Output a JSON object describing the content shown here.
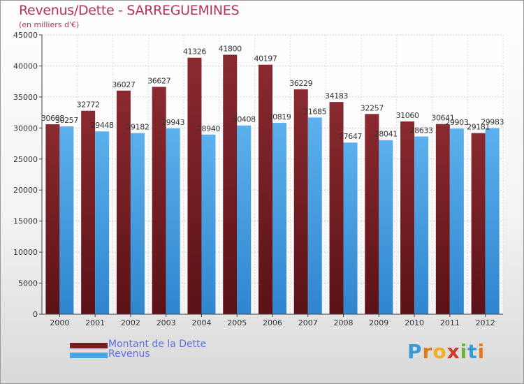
{
  "chart_data": {
    "type": "bar",
    "title": "Revenus/Dette - SARREGUEMINES",
    "subtitle": "(en milliers d'€)",
    "categories": [
      "2000",
      "2001",
      "2002",
      "2003",
      "2004",
      "2005",
      "2006",
      "2007",
      "2008",
      "2009",
      "2010",
      "2011",
      "2012"
    ],
    "series": [
      {
        "name": "Montant de la Dette",
        "color": "#7a1e24",
        "values": [
          30608,
          32772,
          36027,
          36627,
          41326,
          41800,
          40197,
          36229,
          34183,
          32257,
          31060,
          30641,
          29181
        ],
        "labels": [
          "30608",
          "32772",
          "36027",
          "36627",
          "41326",
          "41800",
          "40197",
          "36229",
          "34183",
          "32257",
          "31060",
          "30641",
          "29181"
        ]
      },
      {
        "name": "Revenus",
        "color": "#4aa3e6",
        "values": [
          30257,
          29448,
          29182,
          29943,
          28940,
          30408,
          30819,
          31685,
          27647,
          28041,
          28633,
          29903,
          29983
        ],
        "labels": [
          "30257",
          "29448",
          "29182",
          "29943",
          "28940",
          "30408",
          "30819",
          "31685",
          "27647",
          "28041",
          "28633",
          "29903",
          "29983"
        ]
      }
    ],
    "ylim": [
      0,
      45000
    ],
    "yticks": [
      "0",
      "5000",
      "10000",
      "15000",
      "20000",
      "25000",
      "30000",
      "35000",
      "40000",
      "45000"
    ],
    "grid": true,
    "legend": "bottom-left"
  },
  "logo": {
    "letters": [
      "P",
      "r",
      "o",
      "x",
      "i",
      "t",
      "i"
    ]
  }
}
